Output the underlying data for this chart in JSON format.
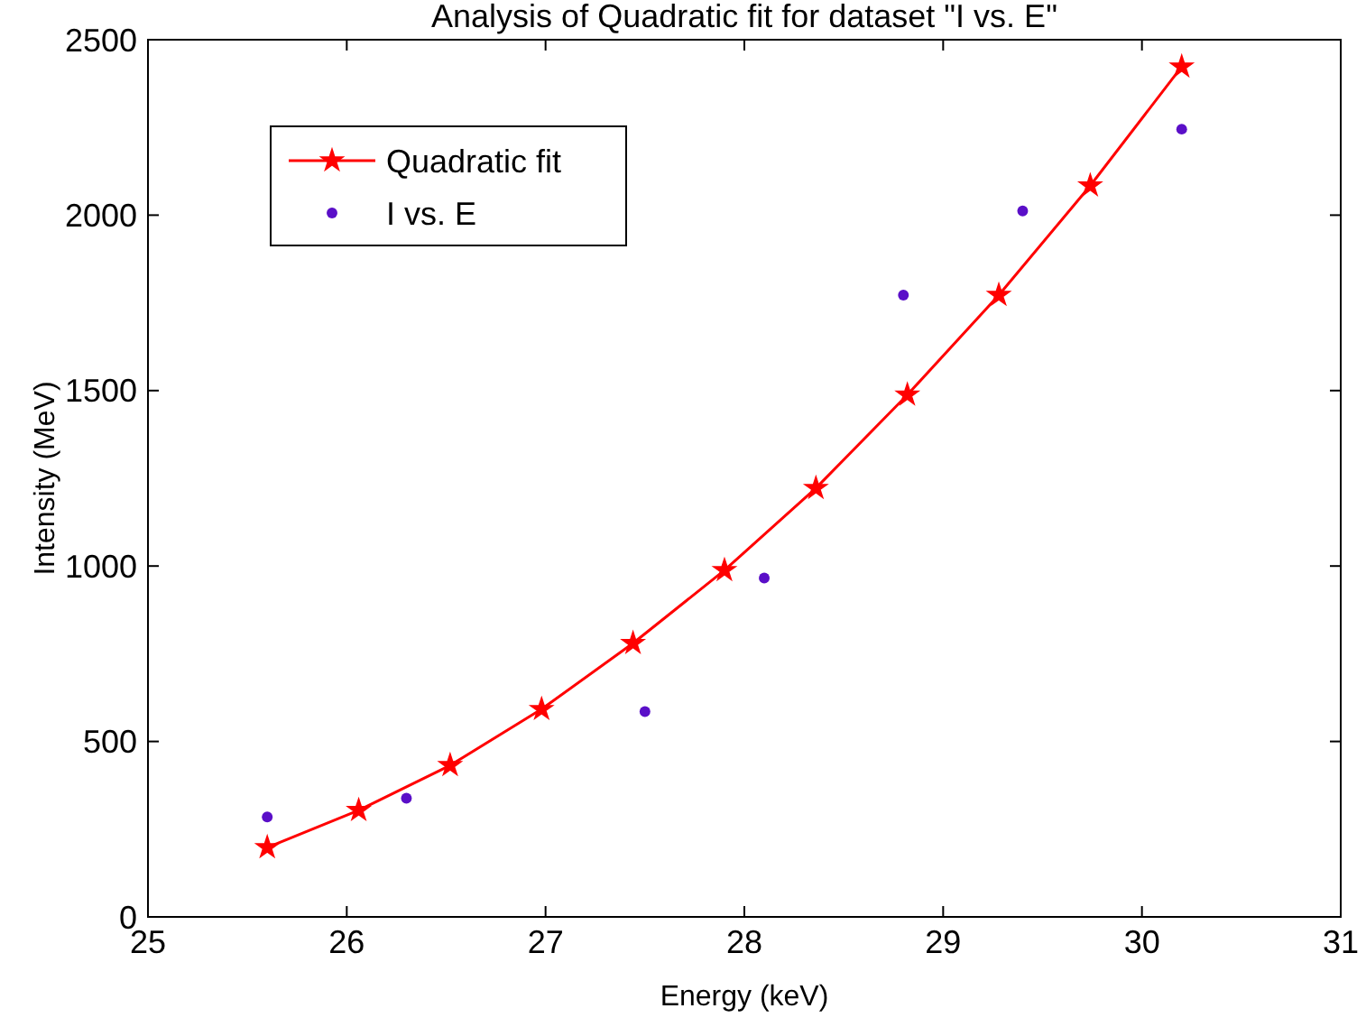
{
  "chart_data": {
    "type": "line",
    "title": "Analysis of Quadratic fit for dataset \"I vs. E\"",
    "xlabel": "Energy (keV)",
    "ylabel": "Intensity (MeV)",
    "xlim": [
      25,
      31
    ],
    "xticks": [
      25,
      26,
      27,
      28,
      29,
      30,
      31
    ],
    "ylim": [
      0,
      2500
    ],
    "yticks": [
      0,
      500,
      1000,
      1500,
      2000,
      2500
    ],
    "grid": false,
    "legend": "top left",
    "series": [
      {
        "name": "Quadratic fit",
        "type": "line",
        "color": "#ff0000",
        "marker": "star",
        "line_style": "solid",
        "x": [
          25.6,
          26.06,
          26.52,
          26.98,
          27.44,
          27.9,
          28.36,
          28.82,
          29.28,
          29.74,
          30.2
        ],
        "values": [
          198,
          304,
          432,
          592,
          780,
          988,
          1222,
          1488,
          1772,
          2084,
          2423
        ]
      },
      {
        "name": "I vs. E",
        "type": "scatter",
        "color": "#5a0fc8",
        "marker": "circle",
        "x": [
          25.6,
          26.3,
          27.5,
          28.1,
          28.8,
          29.4,
          30.2
        ],
        "values": [
          285,
          338,
          585,
          966,
          1772,
          2012,
          2245
        ]
      }
    ]
  }
}
